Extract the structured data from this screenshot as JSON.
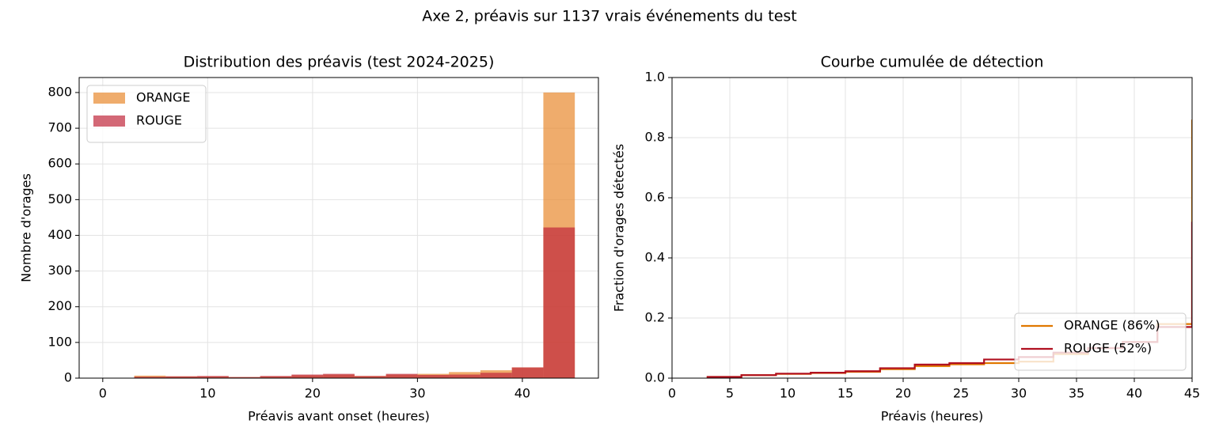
{
  "title": "Axe 2, préavis sur 1137 vrais événements du test",
  "chart_data": [
    {
      "type": "histogram",
      "title": "Distribution des préavis (test 2024-2025)",
      "xlabel": "Préavis avant onset (heures)",
      "ylabel": "Nombre d'orages",
      "bins": [
        0,
        3,
        6,
        9,
        12,
        15,
        18,
        21,
        24,
        27,
        30,
        33,
        36,
        39,
        42,
        45
      ],
      "series": [
        {
          "name": "ORANGE",
          "color": "#e8892e",
          "alpha": 0.7,
          "values": [
            0,
            7,
            5,
            5,
            3,
            5,
            8,
            10,
            6,
            10,
            12,
            17,
            22,
            30,
            800
          ]
        },
        {
          "name": "ROUGE",
          "color": "#c0283c",
          "alpha": 0.7,
          "values": [
            0,
            4,
            5,
            6,
            3,
            6,
            10,
            12,
            6,
            12,
            9,
            10,
            15,
            30,
            422
          ]
        }
      ],
      "xlim": [
        -2.25,
        47.25
      ],
      "xticks": [
        0,
        10,
        20,
        30,
        40
      ],
      "ylim": [
        0,
        842
      ],
      "yticks": [
        0,
        100,
        200,
        300,
        400,
        500,
        600,
        700,
        800
      ],
      "grid": true,
      "legend": "upper left"
    },
    {
      "type": "step",
      "title": "Courbe cumulée de détection",
      "xlabel": "Préavis (heures)",
      "ylabel": "Fraction d'orages détectés",
      "x": [
        3,
        6,
        9,
        12,
        15,
        18,
        21,
        24,
        27,
        30,
        33,
        36,
        39,
        42,
        45
      ],
      "series": [
        {
          "name": "ORANGE (86%)",
          "color": "#e07800",
          "values": [
            0.004,
            0.01,
            0.014,
            0.017,
            0.021,
            0.03,
            0.04,
            0.046,
            0.05,
            0.055,
            0.08,
            0.1,
            0.12,
            0.18,
            0.86
          ]
        },
        {
          "name": "ROUGE (52%)",
          "color": "#b01020",
          "values": [
            0.004,
            0.01,
            0.015,
            0.018,
            0.023,
            0.033,
            0.045,
            0.05,
            0.062,
            0.07,
            0.085,
            0.1,
            0.12,
            0.17,
            0.52
          ]
        }
      ],
      "xlim": [
        0,
        45
      ],
      "xticks": [
        0,
        5,
        10,
        15,
        20,
        25,
        30,
        35,
        40,
        45
      ],
      "ylim": [
        0,
        1
      ],
      "yticks": [
        {
          "value": 0,
          "label": "0.0"
        },
        {
          "value": 0.2,
          "label": "0.2"
        },
        {
          "value": 0.4,
          "label": "0.4"
        },
        {
          "value": 0.6,
          "label": "0.6"
        },
        {
          "value": 0.8,
          "label": "0.8"
        },
        {
          "value": 1,
          "label": "1.0"
        }
      ],
      "grid": true,
      "legend": "lower right"
    }
  ]
}
